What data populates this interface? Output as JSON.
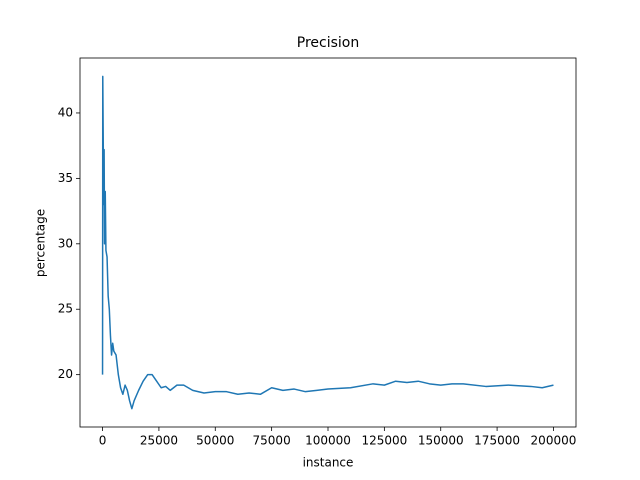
{
  "chart_data": {
    "type": "line",
    "title": "Precision",
    "x_label": "instance",
    "y_label": "percentage",
    "x": [
      0,
      100,
      300,
      500,
      700,
      900,
      1200,
      1500,
      2000,
      2500,
      3000,
      3500,
      4000,
      4500,
      5000,
      6000,
      7000,
      8000,
      9000,
      10000,
      11000,
      12000,
      13000,
      14000,
      16000,
      18000,
      20000,
      22000,
      24000,
      26000,
      28000,
      30000,
      33000,
      36000,
      40000,
      45000,
      50000,
      55000,
      60000,
      65000,
      70000,
      75000,
      80000,
      85000,
      90000,
      95000,
      100000,
      110000,
      120000,
      125000,
      130000,
      135000,
      140000,
      145000,
      150000,
      155000,
      160000,
      170000,
      180000,
      190000,
      195000,
      200000
    ],
    "values": [
      20.0,
      42.8,
      38.0,
      33.0,
      37.2,
      30.0,
      34.0,
      29.5,
      29.0,
      26.0,
      25.0,
      23.0,
      21.5,
      22.4,
      21.8,
      21.5,
      20.0,
      19.0,
      18.5,
      19.2,
      18.8,
      18.0,
      17.4,
      18.0,
      18.8,
      19.5,
      20.0,
      20.0,
      19.5,
      19.0,
      19.1,
      18.8,
      19.2,
      19.2,
      18.8,
      18.6,
      18.7,
      18.7,
      18.5,
      18.6,
      18.5,
      19.0,
      18.8,
      18.9,
      18.7,
      18.8,
      18.9,
      19.0,
      19.3,
      19.2,
      19.5,
      19.4,
      19.5,
      19.3,
      19.2,
      19.3,
      19.3,
      19.1,
      19.2,
      19.1,
      19.0,
      19.2
    ],
    "color": "#1f77b4",
    "xlim": [
      -10000,
      210000
    ],
    "xticks": [
      0,
      25000,
      50000,
      75000,
      100000,
      125000,
      150000,
      175000,
      200000
    ],
    "ylim": [
      16.0,
      44.2
    ],
    "yticks": [
      20,
      25,
      30,
      35,
      40
    ]
  }
}
